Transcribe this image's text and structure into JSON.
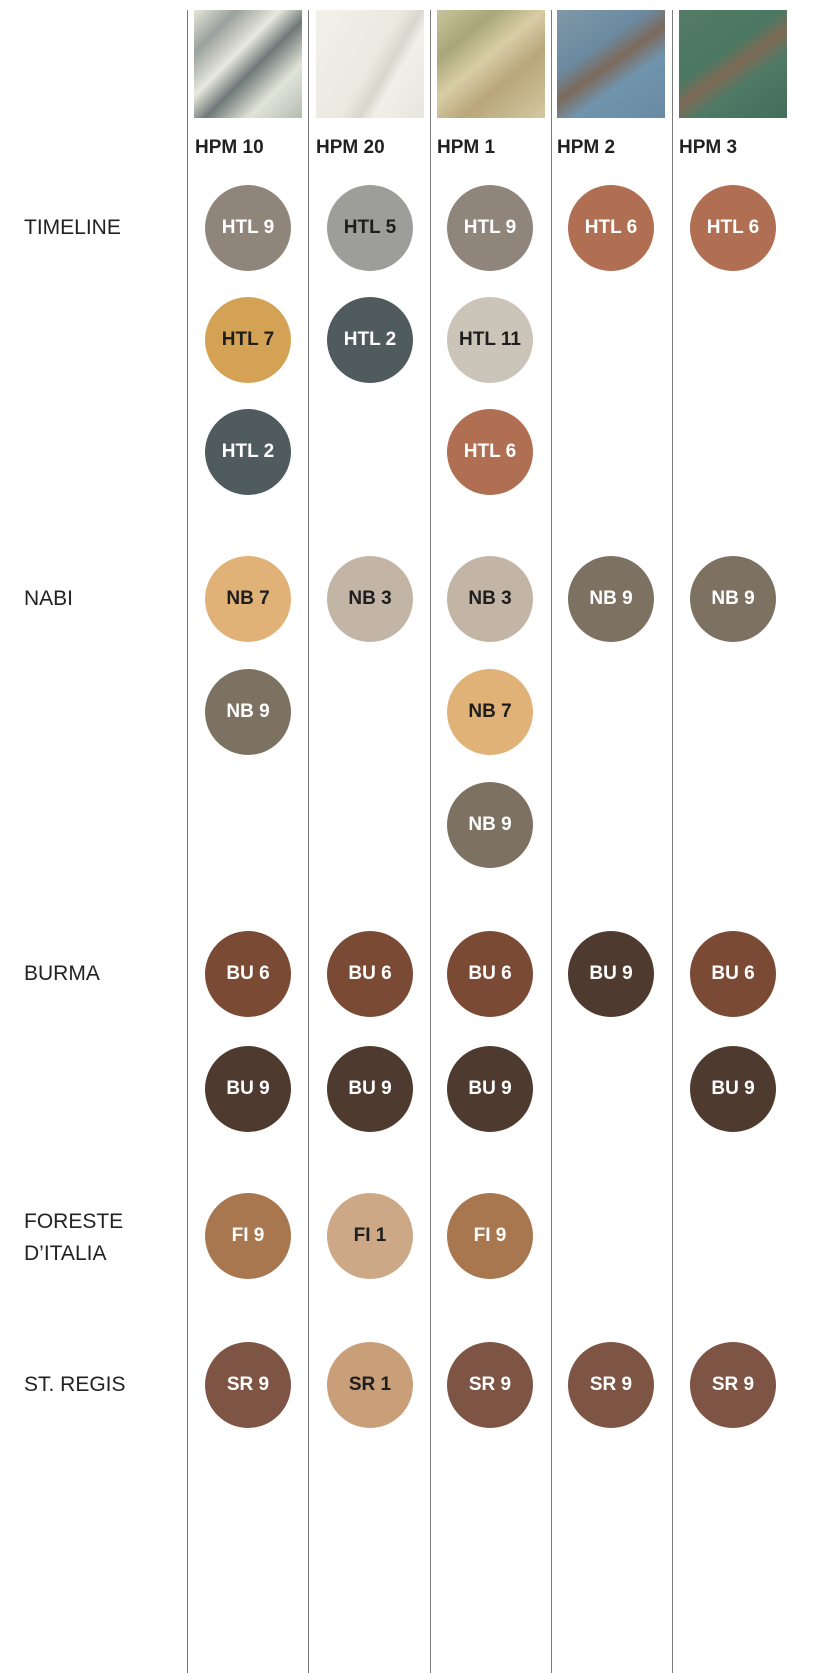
{
  "columns": [
    "HPM 10",
    "HPM 20",
    "HPM 1",
    "HPM 2",
    "HPM 3"
  ],
  "groups": [
    {
      "name": "TIMELINE",
      "cells": [
        [
          {
            "label": "HTL 9",
            "color": "#8f857a"
          },
          {
            "label": "HTL 7",
            "color": "#d4a254"
          },
          {
            "label": "HTL 2",
            "color": "#505b5e"
          }
        ],
        [
          {
            "label": "HTL 5",
            "color": "#9d9d9a"
          },
          {
            "label": "HTL 2",
            "color": "#505b5e"
          }
        ],
        [
          {
            "label": "HTL 9",
            "color": "#8f857a"
          },
          {
            "label": "HTL 11",
            "color": "#cbc4b8"
          },
          {
            "label": "HTL 6",
            "color": "#b06e52"
          }
        ],
        [
          {
            "label": "HTL 6",
            "color": "#b06e52"
          }
        ],
        [
          {
            "label": "HTL 6",
            "color": "#b06e52"
          }
        ]
      ]
    },
    {
      "name": "NABI",
      "cells": [
        [
          {
            "label": "NB 7",
            "color": "#e0b277"
          },
          {
            "label": "NB 9",
            "color": "#7d7262"
          }
        ],
        [
          {
            "label": "NB 3",
            "color": "#c2b5a5"
          }
        ],
        [
          {
            "label": "NB 3",
            "color": "#c2b5a5"
          },
          {
            "label": "NB 7",
            "color": "#e0b277"
          },
          {
            "label": "NB 9",
            "color": "#7d7262"
          }
        ],
        [
          {
            "label": "NB 9",
            "color": "#7d7262"
          }
        ],
        [
          {
            "label": "NB 9",
            "color": "#7d7262"
          }
        ]
      ]
    },
    {
      "name": "BURMA",
      "cells": [
        [
          {
            "label": "BU 6",
            "color": "#7a4a35"
          },
          {
            "label": "BU 9",
            "color": "#4e3a2e"
          }
        ],
        [
          {
            "label": "BU 6",
            "color": "#7a4a35"
          },
          {
            "label": "BU 9",
            "color": "#4e3a2e"
          }
        ],
        [
          {
            "label": "BU 6",
            "color": "#7a4a35"
          },
          {
            "label": "BU 9",
            "color": "#4e3a2e"
          }
        ],
        [
          {
            "label": "BU 9",
            "color": "#4e3a2e"
          }
        ],
        [
          {
            "label": "BU 6",
            "color": "#7a4a35"
          },
          {
            "label": "BU 9",
            "color": "#4e3a2e"
          }
        ]
      ]
    },
    {
      "name": "FORESTE D’ITALIA",
      "cells": [
        [
          {
            "label": "FI 9",
            "color": "#a8774f"
          }
        ],
        [
          {
            "label": "FI 1",
            "color": "#cda886"
          }
        ],
        [
          {
            "label": "FI 9",
            "color": "#a8774f"
          }
        ],
        [],
        []
      ]
    },
    {
      "name": "ST. REGIS",
      "cells": [
        [
          {
            "label": "SR 9",
            "color": "#7e5444"
          }
        ],
        [
          {
            "label": "SR 1",
            "color": "#c99f7a"
          }
        ],
        [
          {
            "label": "SR 9",
            "color": "#7e5444"
          }
        ],
        [
          {
            "label": "SR 9",
            "color": "#7e5444"
          }
        ],
        [
          {
            "label": "SR 9",
            "color": "#7e5444"
          }
        ]
      ]
    }
  ]
}
